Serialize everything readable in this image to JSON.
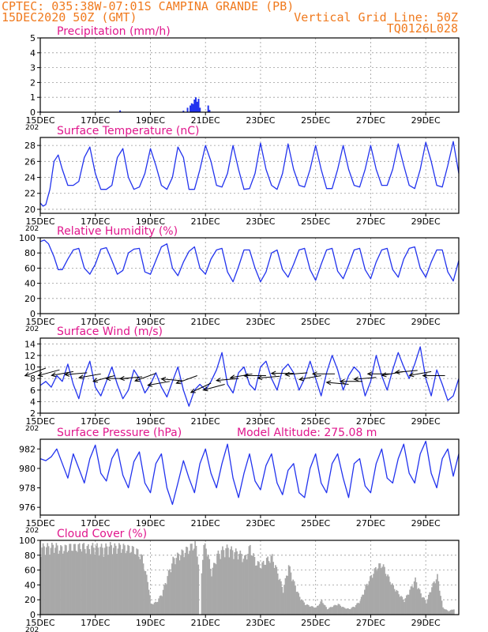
{
  "header": {
    "line1": "CPTEC:   035:38W-07:01S   CAMPINA GRANDE (PB)",
    "line2": "15DEC2020 50Z (GMT)",
    "grid_note": "Vertical Grid Line: 50Z",
    "code": "TQ0126L028"
  },
  "colors": {
    "header": "#f07a1e",
    "title": "#e0168c",
    "line": "#2233ee",
    "cloud": "#a8a8a8",
    "wind_arrow": "#000000"
  },
  "x_axis": {
    "start": "15DEC2020",
    "days_shown": 15.2,
    "tick_labels": [
      "15DEC",
      "17DEC",
      "19DEC",
      "21DEC",
      "23DEC",
      "25DEC",
      "27DEC",
      "29DEC"
    ],
    "tick_days": [
      0,
      2,
      4,
      6,
      8,
      10,
      12,
      14
    ],
    "year_fragment": "202"
  },
  "chart_data": [
    {
      "id": "precip",
      "type": "bar",
      "title": "Precipitation (mm/h)",
      "ylim": [
        0,
        5
      ],
      "yticks": [
        0,
        1,
        2,
        3,
        4,
        5
      ],
      "grid": true,
      "x_day": [
        0.0,
        2.9,
        5.2,
        5.35,
        5.45,
        5.5,
        5.55,
        5.6,
        5.65,
        5.7,
        5.75,
        5.8,
        6.1,
        6.15
      ],
      "values": [
        0.05,
        0.12,
        0.1,
        0.3,
        0.45,
        0.6,
        0.55,
        0.85,
        1.0,
        0.7,
        0.9,
        0.3,
        0.45,
        0.15
      ]
    },
    {
      "id": "temp",
      "type": "line",
      "title": "Surface Temperature (nC)",
      "ylim": [
        19.5,
        29
      ],
      "yticks": [
        20,
        22,
        24,
        26,
        28
      ],
      "grid": true,
      "x_day": [
        0,
        0.1,
        0.2,
        0.35,
        0.5,
        0.65,
        0.8,
        1.0,
        1.2,
        1.4,
        1.6,
        1.8,
        2.0,
        2.2,
        2.4,
        2.6,
        2.8,
        3.0,
        3.2,
        3.4,
        3.6,
        3.8,
        4.0,
        4.2,
        4.4,
        4.6,
        4.8,
        5.0,
        5.2,
        5.4,
        5.6,
        5.8,
        6.0,
        6.2,
        6.4,
        6.6,
        6.8,
        7.0,
        7.2,
        7.4,
        7.6,
        7.8,
        8.0,
        8.2,
        8.4,
        8.6,
        8.8,
        9.0,
        9.2,
        9.4,
        9.6,
        9.8,
        10.0,
        10.2,
        10.4,
        10.6,
        10.8,
        11.0,
        11.2,
        11.4,
        11.6,
        11.8,
        12.0,
        12.2,
        12.4,
        12.6,
        12.8,
        13.0,
        13.2,
        13.4,
        13.6,
        13.8,
        14.0,
        14.2,
        14.4,
        14.6,
        14.8,
        15.0,
        15.2
      ],
      "values": [
        20.8,
        20.4,
        20.6,
        22.5,
        26.0,
        26.8,
        25.0,
        23.0,
        23.0,
        23.5,
        26.5,
        27.8,
        24.5,
        22.5,
        22.5,
        23.0,
        26.5,
        27.6,
        24.0,
        22.5,
        22.8,
        24.5,
        27.6,
        25.5,
        23.0,
        22.5,
        24.0,
        27.8,
        26.5,
        22.5,
        22.5,
        25.0,
        28.0,
        26.0,
        23.0,
        22.8,
        24.5,
        28.0,
        25.0,
        22.5,
        22.6,
        24.5,
        28.3,
        25.0,
        23.0,
        22.5,
        24.5,
        28.2,
        25.0,
        23.0,
        22.8,
        25.0,
        28.0,
        25.0,
        22.6,
        22.6,
        25.0,
        28.0,
        25.0,
        23.0,
        22.8,
        25.0,
        28.0,
        25.0,
        23.0,
        23.0,
        25.0,
        28.2,
        25.5,
        23.0,
        22.6,
        25.0,
        28.4,
        26.0,
        23.0,
        22.8,
        25.5,
        28.5,
        24.5
      ]
    },
    {
      "id": "rh",
      "type": "line",
      "title": "Relative Humidity (%)",
      "ylim": [
        0,
        100
      ],
      "yticks": [
        0,
        20,
        40,
        60,
        80,
        100
      ],
      "grid": true,
      "x_day": [
        0,
        0.15,
        0.3,
        0.5,
        0.65,
        0.8,
        1.0,
        1.2,
        1.4,
        1.6,
        1.8,
        2.0,
        2.2,
        2.4,
        2.6,
        2.8,
        3.0,
        3.2,
        3.4,
        3.6,
        3.8,
        4.0,
        4.2,
        4.4,
        4.6,
        4.8,
        5.0,
        5.2,
        5.4,
        5.6,
        5.8,
        6.0,
        6.2,
        6.4,
        6.6,
        6.8,
        7.0,
        7.2,
        7.4,
        7.6,
        7.8,
        8.0,
        8.2,
        8.4,
        8.6,
        8.8,
        9.0,
        9.2,
        9.4,
        9.6,
        9.8,
        10.0,
        10.2,
        10.4,
        10.6,
        10.8,
        11.0,
        11.2,
        11.4,
        11.6,
        11.8,
        12.0,
        12.2,
        12.4,
        12.6,
        12.8,
        13.0,
        13.2,
        13.4,
        13.6,
        13.8,
        14.0,
        14.2,
        14.4,
        14.6,
        14.8,
        15.0,
        15.2
      ],
      "values": [
        95,
        97,
        92,
        75,
        58,
        58,
        72,
        84,
        86,
        60,
        52,
        65,
        85,
        87,
        70,
        52,
        57,
        80,
        85,
        86,
        55,
        52,
        70,
        88,
        92,
        60,
        50,
        68,
        82,
        88,
        60,
        52,
        72,
        84,
        86,
        55,
        42,
        62,
        84,
        84,
        60,
        42,
        55,
        80,
        84,
        58,
        48,
        65,
        84,
        86,
        58,
        44,
        65,
        84,
        86,
        56,
        46,
        64,
        84,
        86,
        58,
        46,
        68,
        84,
        86,
        58,
        48,
        72,
        86,
        88,
        60,
        48,
        68,
        84,
        84,
        55,
        43,
        70
      ]
    },
    {
      "id": "wind",
      "type": "line",
      "title": "Surface Wind (m/s)",
      "ylim": [
        2,
        15
      ],
      "yticks": [
        2,
        4,
        6,
        8,
        10,
        12,
        14
      ],
      "grid": true,
      "x_day": [
        0,
        0.2,
        0.4,
        0.6,
        0.8,
        1.0,
        1.2,
        1.4,
        1.6,
        1.8,
        2.0,
        2.2,
        2.4,
        2.6,
        2.8,
        3.0,
        3.2,
        3.4,
        3.6,
        3.8,
        4.0,
        4.2,
        4.4,
        4.6,
        4.8,
        5.0,
        5.2,
        5.4,
        5.6,
        5.8,
        6.0,
        6.2,
        6.4,
        6.6,
        6.8,
        7.0,
        7.2,
        7.4,
        7.6,
        7.8,
        8.0,
        8.2,
        8.4,
        8.6,
        8.8,
        9.0,
        9.2,
        9.4,
        9.6,
        9.8,
        10.0,
        10.2,
        10.4,
        10.6,
        10.8,
        11.0,
        11.2,
        11.4,
        11.6,
        11.8,
        12.0,
        12.2,
        12.4,
        12.6,
        12.8,
        13.0,
        13.2,
        13.4,
        13.6,
        13.8,
        14.0,
        14.2,
        14.4,
        14.6,
        14.8,
        15.0,
        15.2
      ],
      "values": [
        6.8,
        7.5,
        6.5,
        8.5,
        7.5,
        10.5,
        7.0,
        4.5,
        8.5,
        11.0,
        6.5,
        5.0,
        7.5,
        10.0,
        7.0,
        4.5,
        6.0,
        9.5,
        8.0,
        5.5,
        7.0,
        9.0,
        6.5,
        4.8,
        7.5,
        10.0,
        6.0,
        3.2,
        6.0,
        7.0,
        6.0,
        7.5,
        9.5,
        12.5,
        7.0,
        5.5,
        9.0,
        10.0,
        7.0,
        6.0,
        10.0,
        11.0,
        8.0,
        6.0,
        9.5,
        10.5,
        9.0,
        6.0,
        8.0,
        11.0,
        8.0,
        5.0,
        9.0,
        12.0,
        9.5,
        6.0,
        8.5,
        10.0,
        9.0,
        5.0,
        7.5,
        12.0,
        8.5,
        6.0,
        9.5,
        12.5,
        10.0,
        8.0,
        10.5,
        13.5,
        8.0,
        5.0,
        9.5,
        7.0,
        4.2,
        5.0,
        8.0
      ],
      "arrows_day": [
        0.2,
        0.7,
        1.2,
        1.7,
        2.2,
        2.7,
        3.2,
        3.7,
        4.2,
        4.7,
        5.2,
        5.7,
        6.2,
        6.7,
        7.2,
        7.7,
        8.2,
        8.7,
        9.2,
        9.7,
        10.2,
        10.7,
        11.2,
        11.7,
        12.2,
        12.7,
        13.2,
        13.7,
        14.2,
        14.7
      ],
      "arrows_speed": [
        9.8,
        9.5,
        9.2,
        9.0,
        8.8,
        8.5,
        8.0,
        8.3,
        8.9,
        7.5,
        7.6,
        8.5,
        7.2,
        7.0,
        8.0,
        8.8,
        8.5,
        8.4,
        8.9,
        9.0,
        8.5,
        8.8,
        7.0,
        7.5,
        8.2,
        8.8,
        9.2,
        9.4,
        9.2,
        8.5
      ],
      "arrows_angle": [
        200,
        195,
        190,
        185,
        190,
        195,
        180,
        185,
        200,
        190,
        175,
        200,
        205,
        195,
        185,
        190,
        180,
        185,
        180,
        185,
        190,
        180,
        175,
        180,
        185,
        180,
        190,
        185,
        190,
        180
      ]
    },
    {
      "id": "pres",
      "type": "line",
      "title": "Surface Pressure (hPa)",
      "annotation": "Model Altitude: 275.08 m",
      "ylim": [
        975.2,
        983
      ],
      "yticks": [
        976,
        978,
        980,
        982
      ],
      "grid": false,
      "x_day": [
        0,
        0.2,
        0.4,
        0.6,
        0.8,
        1.0,
        1.2,
        1.4,
        1.6,
        1.8,
        2.0,
        2.2,
        2.4,
        2.6,
        2.8,
        3.0,
        3.2,
        3.4,
        3.6,
        3.8,
        4.0,
        4.2,
        4.4,
        4.6,
        4.8,
        5.0,
        5.2,
        5.4,
        5.6,
        5.8,
        6.0,
        6.2,
        6.4,
        6.6,
        6.8,
        7.0,
        7.2,
        7.4,
        7.6,
        7.8,
        8.0,
        8.2,
        8.4,
        8.6,
        8.8,
        9.0,
        9.2,
        9.4,
        9.6,
        9.8,
        10.0,
        10.2,
        10.4,
        10.6,
        10.8,
        11.0,
        11.2,
        11.4,
        11.6,
        11.8,
        12.0,
        12.2,
        12.4,
        12.6,
        12.8,
        13.0,
        13.2,
        13.4,
        13.6,
        13.8,
        14.0,
        14.2,
        14.4,
        14.6,
        14.8,
        15.0,
        15.2
      ],
      "values": [
        981.0,
        980.8,
        981.2,
        982.0,
        980.5,
        979.0,
        981.5,
        980.0,
        978.5,
        981.0,
        982.4,
        979.5,
        978.7,
        981.0,
        982.0,
        979.3,
        978.0,
        980.7,
        981.7,
        978.5,
        977.5,
        980.5,
        981.5,
        978.0,
        976.3,
        978.5,
        980.8,
        979.0,
        977.5,
        980.5,
        982.0,
        979.5,
        978.0,
        980.5,
        982.5,
        979.0,
        977.0,
        979.5,
        981.5,
        978.7,
        977.8,
        980.3,
        981.5,
        978.5,
        977.3,
        979.8,
        980.5,
        977.5,
        977.0,
        980.0,
        981.5,
        978.5,
        977.5,
        980.5,
        981.5,
        979.0,
        977.0,
        980.5,
        981.0,
        978.2,
        977.5,
        980.5,
        982.0,
        979.0,
        978.5,
        981.0,
        982.5,
        979.5,
        978.5,
        981.5,
        982.8,
        979.5,
        978.0,
        981.0,
        982.0,
        979.2,
        981.5
      ]
    },
    {
      "id": "cloud",
      "type": "area",
      "title": "Cloud Cover (%)",
      "ylim": [
        0,
        100
      ],
      "yticks": [
        0,
        20,
        40,
        60,
        80,
        100
      ],
      "grid": true,
      "x_day": [
        0,
        0.15,
        0.3,
        0.5,
        0.7,
        0.9,
        1.1,
        1.3,
        1.5,
        1.7,
        1.9,
        2.1,
        2.3,
        2.5,
        2.7,
        2.9,
        3.1,
        3.3,
        3.5,
        3.7,
        3.8,
        3.9,
        4.0,
        4.2,
        4.4,
        4.6,
        4.8,
        5.0,
        5.2,
        5.4,
        5.5,
        5.6,
        5.7,
        5.8,
        5.9,
        6.0,
        6.2,
        6.4,
        6.6,
        6.8,
        7.0,
        7.2,
        7.4,
        7.6,
        7.8,
        8.0,
        8.2,
        8.4,
        8.6,
        8.8,
        9.0,
        9.2,
        9.4,
        9.6,
        9.8,
        10.0,
        10.2,
        10.4,
        10.6,
        10.8,
        11.0,
        11.2,
        11.4,
        11.6,
        11.8,
        12.0,
        12.2,
        12.4,
        12.6,
        12.8,
        13.0,
        13.2,
        13.4,
        13.6,
        13.8,
        14.0,
        14.2,
        14.4,
        14.6,
        14.8,
        15.0
      ],
      "values": [
        95,
        97,
        96,
        98,
        94,
        95,
        97,
        96,
        98,
        95,
        97,
        96,
        95,
        98,
        96,
        97,
        95,
        94,
        90,
        80,
        60,
        45,
        15,
        18,
        30,
        55,
        78,
        85,
        90,
        95,
        98,
        100,
        85,
        40,
        95,
        98,
        60,
        85,
        92,
        95,
        90,
        88,
        80,
        96,
        75,
        70,
        78,
        82,
        60,
        35,
        70,
        45,
        25,
        15,
        12,
        10,
        20,
        8,
        12,
        15,
        10,
        8,
        12,
        20,
        40,
        55,
        68,
        72,
        55,
        40,
        30,
        20,
        35,
        50,
        30,
        18,
        40,
        55,
        10,
        5,
        8
      ],
      "gap_day": 5.8
    }
  ]
}
